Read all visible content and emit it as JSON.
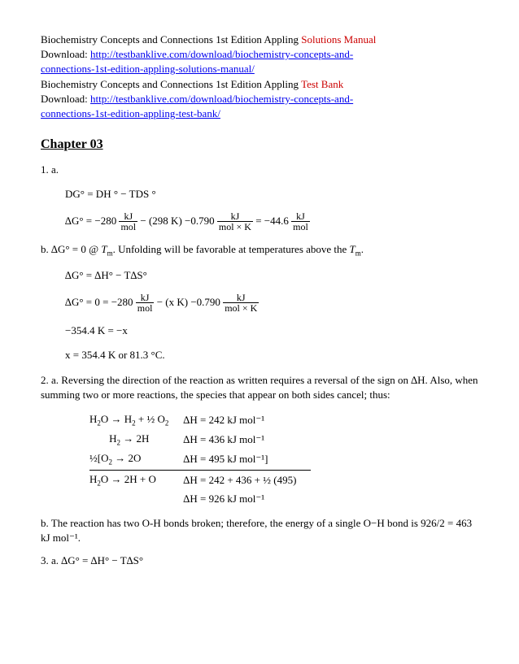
{
  "header": {
    "line1_prefix": "Biochemistry Concepts and Connections 1st Edition Appling ",
    "line1_red": "Solutions Manual",
    "download_label": "Download: ",
    "link1_a": "http://testbanklive.com/download/biochemistry-concepts-and-",
    "link1_b": "connections-1st-edition-appling-solutions-manual/",
    "line2_prefix": "Biochemistry Concepts and Connections 1st Edition Appling ",
    "line2_red": "Test Bank",
    "link2_a": "http://testbanklive.com/download/biochemistry-concepts-and-",
    "link2_b": "connections-1st-edition-appling-test-bank/"
  },
  "chapter": "Chapter 03",
  "q1": {
    "a_label": "1. a.",
    "eq1": "DG° = DH ° − TDS °",
    "eq2_lead": "∆G° = −280",
    "eq2_mid": " − (298 K) −0.790",
    "eq2_eq": " = −44.6",
    "frac_kj_mol_num": "kJ",
    "frac_kj_mol_den": "mol",
    "frac_kj_molk_num": "kJ",
    "frac_kj_molk_den": "mol × K",
    "b_text": "b. ∆G° = 0 @ Tm. Unfolding will be favorable at temperatures above the Tm.",
    "eq3": "∆G° = ∆H° − T∆S°",
    "eq4_lead": "∆G° = 0 = −280",
    "eq4_mid": " − (x K) −0.790",
    "eq5": "−354.4 K = −x",
    "eq6": "x = 354.4 K or 81.3 °C."
  },
  "q2": {
    "a_text": "2. a. Reversing the direction of the reaction as written requires a reversal of the sign on ∆H. Also, when summing two or more reactions, the species that appear on both sides cancel; thus:",
    "rows": [
      {
        "rxn": "H2O → H2 + ½ O2",
        "dh": "∆H = 242 kJ mol⁻¹"
      },
      {
        "rxn": "H2 → 2H",
        "dh": "∆H = 436 kJ mol⁻¹"
      },
      {
        "rxn": "½[O2 → 2O",
        "dh": "∆H = 495 kJ mol⁻¹]"
      },
      {
        "rxn": "H2O → 2H + O",
        "dh": "∆H = 242 + 436 + ½ (495)"
      },
      {
        "rxn": "",
        "dh": "∆H = 926 kJ mol⁻¹"
      }
    ],
    "b_text": "b. The reaction has two O-H bonds broken; therefore, the energy of a single O−H bond is 926/2 = 463 kJ mol⁻¹."
  },
  "q3": {
    "a_text": "3. a. ∆G° = ∆H° − T∆S°"
  },
  "sub": {
    "two": "2",
    "m": "m"
  }
}
